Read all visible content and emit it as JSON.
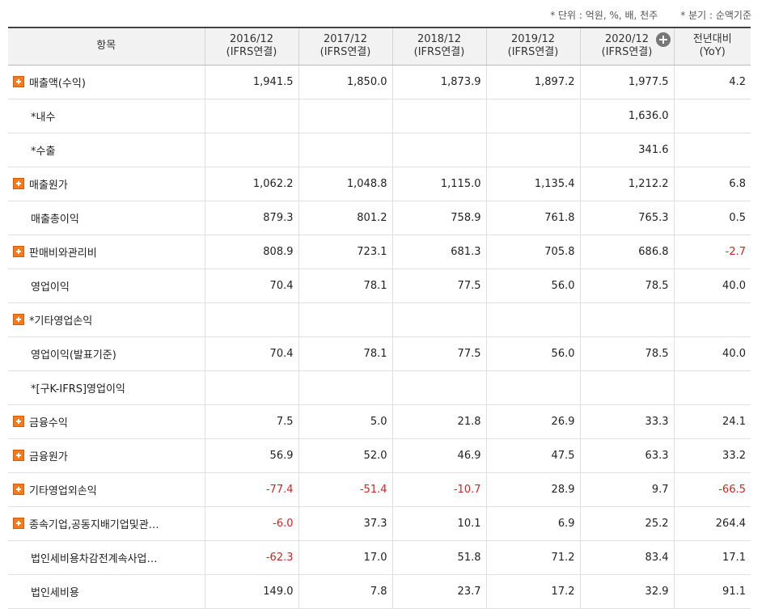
{
  "units": {
    "unit_note": "* 단위 : 억원, %, 배, 천주",
    "basis_note": "* 분기 : 순액기준"
  },
  "header": {
    "item": "항목",
    "years": [
      {
        "period": "2016/12",
        "basis": "(IFRS연결)"
      },
      {
        "period": "2017/12",
        "basis": "(IFRS연결)"
      },
      {
        "period": "2018/12",
        "basis": "(IFRS연결)"
      },
      {
        "period": "2019/12",
        "basis": "(IFRS연결)"
      },
      {
        "period": "2020/12",
        "basis": "(IFRS연결)"
      }
    ],
    "yoy_line1": "전년대비",
    "yoy_line2": "(YoY)"
  },
  "rows": [
    {
      "label": "매출액(수익)",
      "expand": true,
      "vals": [
        "1,941.5",
        "1,850.0",
        "1,873.9",
        "1,897.2",
        "1,977.5",
        "4.2"
      ],
      "neg": [
        false,
        false,
        false,
        false,
        false,
        false
      ]
    },
    {
      "label": "*내수",
      "expand": false,
      "vals": [
        "",
        "",
        "",
        "",
        "1,636.0",
        ""
      ],
      "neg": [
        false,
        false,
        false,
        false,
        false,
        false
      ]
    },
    {
      "label": "*수출",
      "expand": false,
      "vals": [
        "",
        "",
        "",
        "",
        "341.6",
        ""
      ],
      "neg": [
        false,
        false,
        false,
        false,
        false,
        false
      ]
    },
    {
      "label": "매출원가",
      "expand": true,
      "vals": [
        "1,062.2",
        "1,048.8",
        "1,115.0",
        "1,135.4",
        "1,212.2",
        "6.8"
      ],
      "neg": [
        false,
        false,
        false,
        false,
        false,
        false
      ]
    },
    {
      "label": "매출총이익",
      "expand": false,
      "vals": [
        "879.3",
        "801.2",
        "758.9",
        "761.8",
        "765.3",
        "0.5"
      ],
      "neg": [
        false,
        false,
        false,
        false,
        false,
        false
      ]
    },
    {
      "label": "판매비와관리비",
      "expand": true,
      "vals": [
        "808.9",
        "723.1",
        "681.3",
        "705.8",
        "686.8",
        "-2.7"
      ],
      "neg": [
        false,
        false,
        false,
        false,
        false,
        true
      ]
    },
    {
      "label": "영업이익",
      "expand": false,
      "vals": [
        "70.4",
        "78.1",
        "77.5",
        "56.0",
        "78.5",
        "40.0"
      ],
      "neg": [
        false,
        false,
        false,
        false,
        false,
        false
      ]
    },
    {
      "label": "*기타영업손익",
      "expand": true,
      "vals": [
        "",
        "",
        "",
        "",
        "",
        ""
      ],
      "neg": [
        false,
        false,
        false,
        false,
        false,
        false
      ]
    },
    {
      "label": "영업이익(발표기준)",
      "expand": false,
      "vals": [
        "70.4",
        "78.1",
        "77.5",
        "56.0",
        "78.5",
        "40.0"
      ],
      "neg": [
        false,
        false,
        false,
        false,
        false,
        false
      ]
    },
    {
      "label": "*[구K-IFRS]영업이익",
      "expand": false,
      "vals": [
        "",
        "",
        "",
        "",
        "",
        ""
      ],
      "neg": [
        false,
        false,
        false,
        false,
        false,
        false
      ]
    },
    {
      "label": "금융수익",
      "expand": true,
      "vals": [
        "7.5",
        "5.0",
        "21.8",
        "26.9",
        "33.3",
        "24.1"
      ],
      "neg": [
        false,
        false,
        false,
        false,
        false,
        false
      ]
    },
    {
      "label": "금융원가",
      "expand": true,
      "vals": [
        "56.9",
        "52.0",
        "46.9",
        "47.5",
        "63.3",
        "33.2"
      ],
      "neg": [
        false,
        false,
        false,
        false,
        false,
        false
      ]
    },
    {
      "label": "기타영업외손익",
      "expand": true,
      "vals": [
        "-77.4",
        "-51.4",
        "-10.7",
        "28.9",
        "9.7",
        "-66.5"
      ],
      "neg": [
        true,
        true,
        true,
        false,
        false,
        true
      ]
    },
    {
      "label": "종속기업,공동지배기업및관…",
      "expand": true,
      "vals": [
        "-6.0",
        "37.3",
        "10.1",
        "6.9",
        "25.2",
        "264.4"
      ],
      "neg": [
        true,
        false,
        false,
        false,
        false,
        false
      ]
    },
    {
      "label": "법인세비용차감전계속사업…",
      "expand": false,
      "vals": [
        "-62.3",
        "17.0",
        "51.8",
        "71.2",
        "83.4",
        "17.1"
      ],
      "neg": [
        true,
        false,
        false,
        false,
        false,
        false
      ]
    },
    {
      "label": "법인세비용",
      "expand": false,
      "vals": [
        "149.0",
        "7.8",
        "23.7",
        "17.2",
        "32.9",
        "91.1"
      ],
      "neg": [
        false,
        false,
        false,
        false,
        false,
        false
      ]
    }
  ]
}
